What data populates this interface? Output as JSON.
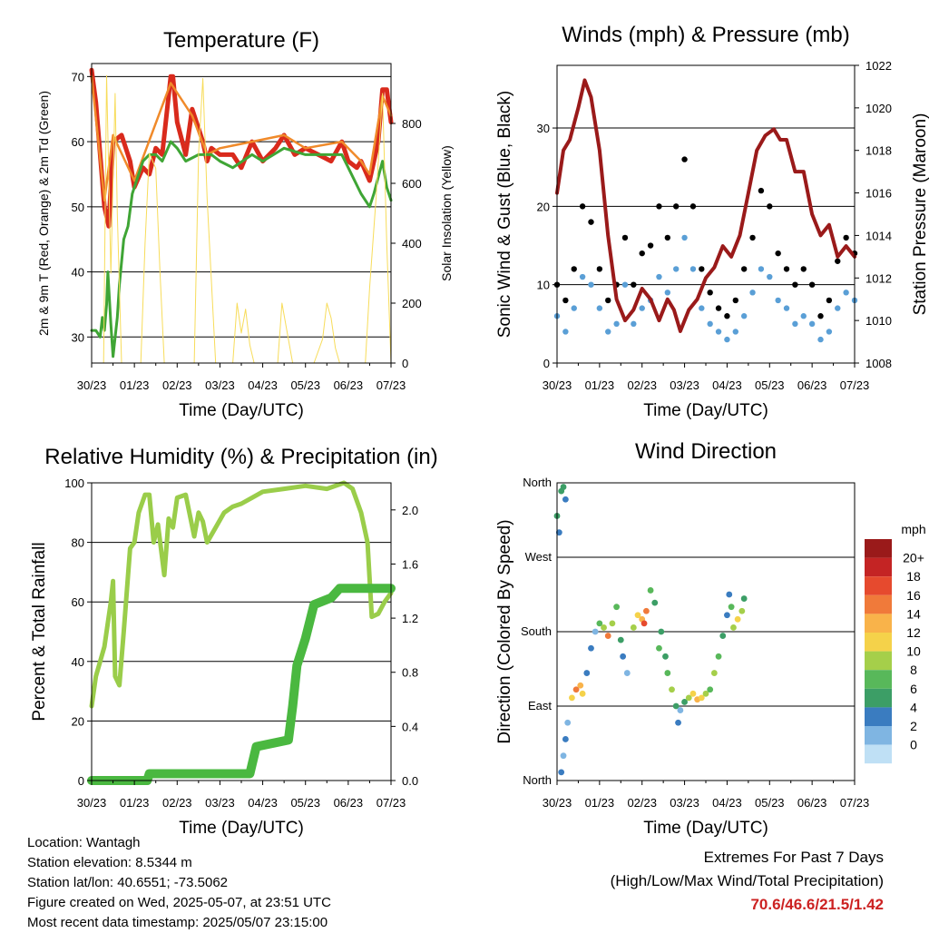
{
  "x_ticks": [
    "30/23",
    "01/23",
    "02/23",
    "03/23",
    "04/23",
    "05/23",
    "06/23",
    "07/23"
  ],
  "info": {
    "location": "Location: Wantagh",
    "elevation": "Station elevation: 8.5344 m",
    "latlon": "Station lat/lon: 40.6551; -73.5062",
    "created": "Figure created on Wed, 2025-05-07, at 23:51 UTC",
    "recent": "Most recent data timestamp: 2025/05/07 23:15:00"
  },
  "extremes": {
    "title": "Extremes For Past 7 Days",
    "subtitle": "(High/Low/Max Wind/Total Precipitation)",
    "values": "70.6/46.6/21.5/1.42",
    "value_color": "#cc2222"
  },
  "chart_data": [
    {
      "type": "line",
      "title": "Temperature (F)",
      "xlabel": "Time (Day/UTC)",
      "ylabel": "2m & 9m T (Red, Orange) & 2m Td (Green)",
      "ylabel_right": "Solar Insolation (Yellow)",
      "x_range": [
        0,
        7
      ],
      "ylim": [
        26,
        72
      ],
      "ylim_right": [
        0,
        1000
      ],
      "yticks": [
        30,
        40,
        50,
        60,
        70
      ],
      "yticks_right": [
        0,
        200,
        400,
        600,
        800
      ],
      "grid": true,
      "series": [
        {
          "name": "2m T",
          "color": "#d92a1c",
          "x": [
            0,
            0.1,
            0.2,
            0.3,
            0.4,
            0.5,
            0.7,
            0.9,
            1.0,
            1.2,
            1.35,
            1.5,
            1.65,
            1.85,
            1.9,
            2.0,
            2.2,
            2.35,
            2.5,
            2.6,
            2.7,
            2.8,
            3.0,
            3.3,
            3.5,
            3.75,
            4.0,
            4.3,
            4.5,
            4.75,
            5.0,
            5.3,
            5.6,
            5.85,
            6.0,
            6.2,
            6.3,
            6.5,
            6.7,
            6.8,
            6.9,
            7.0
          ],
          "y": [
            71,
            66,
            58,
            50,
            47,
            60,
            61,
            57,
            53,
            56,
            55,
            59,
            58,
            70,
            70,
            63,
            58,
            65,
            62,
            60,
            57,
            59,
            58,
            58,
            56,
            60,
            57,
            59,
            61,
            58,
            59,
            58,
            57,
            60,
            57,
            56,
            57,
            54,
            60,
            68,
            68,
            63
          ]
        },
        {
          "name": "9m T",
          "color": "#f08a2a",
          "x": [
            0,
            0.3,
            0.5,
            1.0,
            1.85,
            2.35,
            2.7,
            3.0,
            3.75,
            4.5,
            5.0,
            5.85,
            6.3,
            6.5,
            6.8,
            7.0
          ],
          "y": [
            70,
            51,
            61,
            54,
            69,
            64,
            58,
            59,
            60,
            61,
            59,
            60,
            57,
            55,
            67,
            64
          ]
        },
        {
          "name": "2m Td",
          "color": "#3fa535",
          "x": [
            0,
            0.1,
            0.2,
            0.25,
            0.3,
            0.35,
            0.38,
            0.45,
            0.5,
            0.6,
            0.65,
            0.75,
            0.85,
            0.95,
            1.05,
            1.2,
            1.35,
            1.5,
            1.65,
            1.85,
            2.0,
            2.2,
            2.5,
            2.8,
            3.0,
            3.3,
            3.75,
            4.0,
            4.5,
            5.0,
            5.5,
            5.85,
            6.0,
            6.3,
            6.5,
            6.6,
            6.8,
            6.9,
            7.0
          ],
          "y": [
            31,
            31,
            30,
            33,
            31,
            35,
            40,
            32,
            27,
            33,
            38,
            45,
            47,
            52,
            54,
            57,
            58,
            58,
            57,
            60,
            59,
            57,
            58,
            58,
            57,
            56,
            58,
            57,
            59,
            58,
            58,
            58,
            56,
            52,
            50,
            52,
            57,
            53,
            51
          ]
        },
        {
          "name": "Solar Insolation",
          "color": "#f7dc5a",
          "axis": "right",
          "x": [
            0,
            0.15,
            0.28,
            0.35,
            0.45,
            0.55,
            0.6,
            0.7,
            1.0,
            1.15,
            1.25,
            1.35,
            1.5,
            1.6,
            1.7,
            1.8,
            1.9,
            2.0,
            2.2,
            2.4,
            2.5,
            2.6,
            2.7,
            2.9,
            3.2,
            3.3,
            3.4,
            3.5,
            3.6,
            3.7,
            3.8,
            4.2,
            4.35,
            4.45,
            4.55,
            4.7,
            5.2,
            5.4,
            5.5,
            5.6,
            5.7,
            5.8,
            6.2,
            6.4,
            6.5,
            6.65,
            6.8,
            6.9,
            7.0
          ],
          "y": [
            0,
            0,
            0,
            960,
            300,
            900,
            500,
            0,
            0,
            0,
            400,
            700,
            650,
            300,
            0,
            0,
            0,
            0,
            0,
            0,
            700,
            950,
            550,
            0,
            0,
            0,
            200,
            100,
            180,
            60,
            0,
            0,
            0,
            200,
            120,
            0,
            0,
            80,
            200,
            150,
            50,
            0,
            0,
            0,
            250,
            550,
            900,
            400,
            0
          ]
        }
      ]
    },
    {
      "type": "scatter",
      "title": "Winds (mph) & Pressure (mb)",
      "xlabel": "Time (Day/UTC)",
      "ylabel": "Sonic Wind & Gust (Blue, Black)",
      "ylabel_right": "Station Pressure (Maroon)",
      "x_range": [
        0,
        7
      ],
      "ylim": [
        0,
        38
      ],
      "ylim_right": [
        1008,
        1022
      ],
      "yticks": [
        0,
        10,
        20,
        30
      ],
      "yticks_right": [
        1008,
        1010,
        1012,
        1014,
        1016,
        1018,
        1020,
        1022
      ],
      "grid": true,
      "series": [
        {
          "name": "Gust",
          "color": "#000000",
          "x": [
            0,
            0.2,
            0.4,
            0.6,
            0.8,
            1.0,
            1.2,
            1.4,
            1.6,
            1.8,
            2.0,
            2.2,
            2.4,
            2.6,
            2.8,
            3.0,
            3.2,
            3.4,
            3.6,
            3.8,
            4.0,
            4.2,
            4.4,
            4.6,
            4.8,
            5.0,
            5.2,
            5.4,
            5.6,
            5.8,
            6.0,
            6.2,
            6.4,
            6.6,
            6.8,
            7.0
          ],
          "y": [
            10,
            8,
            12,
            20,
            18,
            12,
            8,
            10,
            16,
            10,
            14,
            15,
            20,
            16,
            20,
            26,
            20,
            12,
            9,
            7,
            6,
            8,
            12,
            16,
            22,
            20,
            14,
            12,
            10,
            12,
            10,
            6,
            8,
            13,
            16,
            14
          ]
        },
        {
          "name": "Wind",
          "color": "#5a9fd6",
          "x": [
            0,
            0.2,
            0.4,
            0.6,
            0.8,
            1.0,
            1.2,
            1.4,
            1.6,
            1.8,
            2.0,
            2.2,
            2.4,
            2.6,
            2.8,
            3.0,
            3.2,
            3.4,
            3.6,
            3.8,
            4.0,
            4.2,
            4.4,
            4.6,
            4.8,
            5.0,
            5.2,
            5.4,
            5.6,
            5.8,
            6.0,
            6.2,
            6.4,
            6.6,
            6.8,
            7.0
          ],
          "y": [
            6,
            4,
            7,
            11,
            10,
            7,
            4,
            5,
            10,
            5,
            7,
            8,
            11,
            9,
            12,
            16,
            12,
            7,
            5,
            4,
            3,
            4,
            6,
            9,
            12,
            11,
            8,
            7,
            5,
            6,
            5,
            3,
            4,
            7,
            9,
            8
          ]
        },
        {
          "name": "Station Pressure",
          "color": "#9a1a1a",
          "axis": "right",
          "x": [
            0,
            0.15,
            0.3,
            0.5,
            0.65,
            0.8,
            1.0,
            1.2,
            1.4,
            1.6,
            1.8,
            2.0,
            2.2,
            2.4,
            2.6,
            2.75,
            2.9,
            3.1,
            3.3,
            3.5,
            3.7,
            3.9,
            4.1,
            4.3,
            4.5,
            4.7,
            4.9,
            5.1,
            5.25,
            5.4,
            5.6,
            5.8,
            6.0,
            6.2,
            6.4,
            6.6,
            6.8,
            7.0
          ],
          "y": [
            1016,
            1018,
            1018.5,
            1020,
            1021.3,
            1020.5,
            1018,
            1014,
            1011,
            1010,
            1010.5,
            1011.5,
            1011,
            1010,
            1011,
            1010.5,
            1009.5,
            1010.5,
            1011,
            1012,
            1012.5,
            1013.5,
            1013,
            1014,
            1016,
            1018,
            1018.7,
            1019,
            1018.5,
            1018.5,
            1017,
            1017,
            1015,
            1014,
            1014.5,
            1013,
            1013.5,
            1013
          ]
        }
      ]
    },
    {
      "type": "line",
      "title": "Relative Humidity (%) & Precipitation (in)",
      "xlabel": "Time (Day/UTC)",
      "ylabel": "Percent & Total Rainfall",
      "x_range": [
        0,
        7
      ],
      "ylim": [
        0,
        100
      ],
      "ylim_right": [
        0,
        2.2
      ],
      "yticks": [
        0,
        20,
        40,
        60,
        80,
        100
      ],
      "yticks_right": [
        0.0,
        0.4,
        0.8,
        1.2,
        1.6,
        2.0
      ],
      "grid": true,
      "series": [
        {
          "name": "Relative Humidity",
          "color": "#9acd4a",
          "x": [
            0,
            0.1,
            0.2,
            0.3,
            0.45,
            0.5,
            0.55,
            0.65,
            0.75,
            0.9,
            1.0,
            1.1,
            1.25,
            1.35,
            1.45,
            1.55,
            1.7,
            1.8,
            1.9,
            2.0,
            2.2,
            2.4,
            2.5,
            2.6,
            2.7,
            2.9,
            3.1,
            3.3,
            3.5,
            3.75,
            4.0,
            4.5,
            5.0,
            5.5,
            5.9,
            6.1,
            6.3,
            6.45,
            6.55,
            6.7,
            6.85,
            7.0
          ],
          "y": [
            25,
            35,
            40,
            45,
            60,
            67,
            35,
            32,
            50,
            78,
            80,
            90,
            96,
            96,
            80,
            86,
            69,
            88,
            85,
            95,
            96,
            82,
            90,
            87,
            80,
            85,
            90,
            92,
            93,
            95,
            97,
            98,
            99,
            98,
            100,
            98,
            90,
            80,
            55,
            56,
            60,
            63
          ]
        },
        {
          "name": "Precipitation",
          "color": "#4ab840",
          "axis": "right",
          "x": [
            0,
            1.3,
            1.35,
            3.7,
            3.85,
            4.6,
            4.7,
            4.8,
            5.0,
            5.2,
            5.6,
            5.8,
            7.0
          ],
          "y": [
            0.0,
            0.0,
            0.05,
            0.05,
            0.25,
            0.3,
            0.55,
            0.85,
            1.05,
            1.3,
            1.35,
            1.42,
            1.42
          ]
        }
      ]
    },
    {
      "type": "scatter",
      "title": "Wind Direction",
      "xlabel": "Time (Day/UTC)",
      "ylabel": "Direction (Colored By Speed)",
      "x_range": [
        0,
        7
      ],
      "ylim": [
        0,
        360
      ],
      "ytick_labels": [
        "North",
        "East",
        "South",
        "West",
        "North"
      ],
      "grid": true,
      "colorbar": {
        "title": "mph",
        "labels": [
          "20+",
          "18",
          "16",
          "14",
          "12",
          "10",
          "8",
          "6",
          "4",
          "2",
          "0"
        ],
        "colors": [
          "#9a1a1a",
          "#c42424",
          "#e64a2e",
          "#f07a3a",
          "#f9b34a",
          "#f5d24a",
          "#a5cf4a",
          "#58b85a",
          "#3c9e66",
          "#3a7cc0",
          "#7fb5e2",
          "#bfe0f5"
        ]
      },
      "points": [
        {
          "x": 0.0,
          "dir": 320,
          "speed": 6
        },
        {
          "x": 0.05,
          "dir": 300,
          "speed": 5
        },
        {
          "x": 0.1,
          "dir": 350,
          "speed": 6
        },
        {
          "x": 0.15,
          "dir": 355,
          "speed": 7
        },
        {
          "x": 0.2,
          "dir": 340,
          "speed": 5
        },
        {
          "x": 0.1,
          "dir": 10,
          "speed": 4
        },
        {
          "x": 0.15,
          "dir": 30,
          "speed": 3
        },
        {
          "x": 0.2,
          "dir": 50,
          "speed": 4
        },
        {
          "x": 0.25,
          "dir": 70,
          "speed": 3
        },
        {
          "x": 0.35,
          "dir": 100,
          "speed": 12
        },
        {
          "x": 0.45,
          "dir": 110,
          "speed": 16
        },
        {
          "x": 0.55,
          "dir": 115,
          "speed": 14
        },
        {
          "x": 0.6,
          "dir": 105,
          "speed": 12
        },
        {
          "x": 0.7,
          "dir": 130,
          "speed": 4
        },
        {
          "x": 0.8,
          "dir": 160,
          "speed": 5
        },
        {
          "x": 0.9,
          "dir": 180,
          "speed": 3
        },
        {
          "x": 1.0,
          "dir": 190,
          "speed": 8
        },
        {
          "x": 1.1,
          "dir": 185,
          "speed": 10
        },
        {
          "x": 1.2,
          "dir": 175,
          "speed": 16
        },
        {
          "x": 1.3,
          "dir": 190,
          "speed": 10
        },
        {
          "x": 1.4,
          "dir": 210,
          "speed": 8
        },
        {
          "x": 1.5,
          "dir": 170,
          "speed": 6
        },
        {
          "x": 1.55,
          "dir": 150,
          "speed": 4
        },
        {
          "x": 1.65,
          "dir": 130,
          "speed": 3
        },
        {
          "x": 1.8,
          "dir": 185,
          "speed": 10
        },
        {
          "x": 1.9,
          "dir": 200,
          "speed": 12
        },
        {
          "x": 2.0,
          "dir": 195,
          "speed": 14
        },
        {
          "x": 2.05,
          "dir": 190,
          "speed": 18
        },
        {
          "x": 2.1,
          "dir": 205,
          "speed": 16
        },
        {
          "x": 2.2,
          "dir": 230,
          "speed": 8
        },
        {
          "x": 2.3,
          "dir": 215,
          "speed": 6
        },
        {
          "x": 2.4,
          "dir": 160,
          "speed": 8
        },
        {
          "x": 2.45,
          "dir": 180,
          "speed": 6
        },
        {
          "x": 2.55,
          "dir": 150,
          "speed": 7
        },
        {
          "x": 2.6,
          "dir": 130,
          "speed": 9
        },
        {
          "x": 2.7,
          "dir": 110,
          "speed": 10
        },
        {
          "x": 2.8,
          "dir": 90,
          "speed": 6
        },
        {
          "x": 2.85,
          "dir": 70,
          "speed": 4
        },
        {
          "x": 2.9,
          "dir": 85,
          "speed": 3
        },
        {
          "x": 3.0,
          "dir": 95,
          "speed": 6
        },
        {
          "x": 3.1,
          "dir": 100,
          "speed": 10
        },
        {
          "x": 3.2,
          "dir": 105,
          "speed": 12
        },
        {
          "x": 3.3,
          "dir": 98,
          "speed": 14
        },
        {
          "x": 3.4,
          "dir": 100,
          "speed": 12
        },
        {
          "x": 3.5,
          "dir": 105,
          "speed": 10
        },
        {
          "x": 3.6,
          "dir": 110,
          "speed": 8
        },
        {
          "x": 3.7,
          "dir": 130,
          "speed": 10
        },
        {
          "x": 3.8,
          "dir": 150,
          "speed": 8
        },
        {
          "x": 3.9,
          "dir": 175,
          "speed": 6
        },
        {
          "x": 4.0,
          "dir": 200,
          "speed": 4
        },
        {
          "x": 4.05,
          "dir": 225,
          "speed": 5
        },
        {
          "x": 4.1,
          "dir": 210,
          "speed": 8
        },
        {
          "x": 4.15,
          "dir": 185,
          "speed": 10
        },
        {
          "x": 4.25,
          "dir": 195,
          "speed": 12
        },
        {
          "x": 4.35,
          "dir": 205,
          "speed": 10
        },
        {
          "x": 4.4,
          "dir": 220,
          "speed": 6
        }
      ]
    }
  ]
}
